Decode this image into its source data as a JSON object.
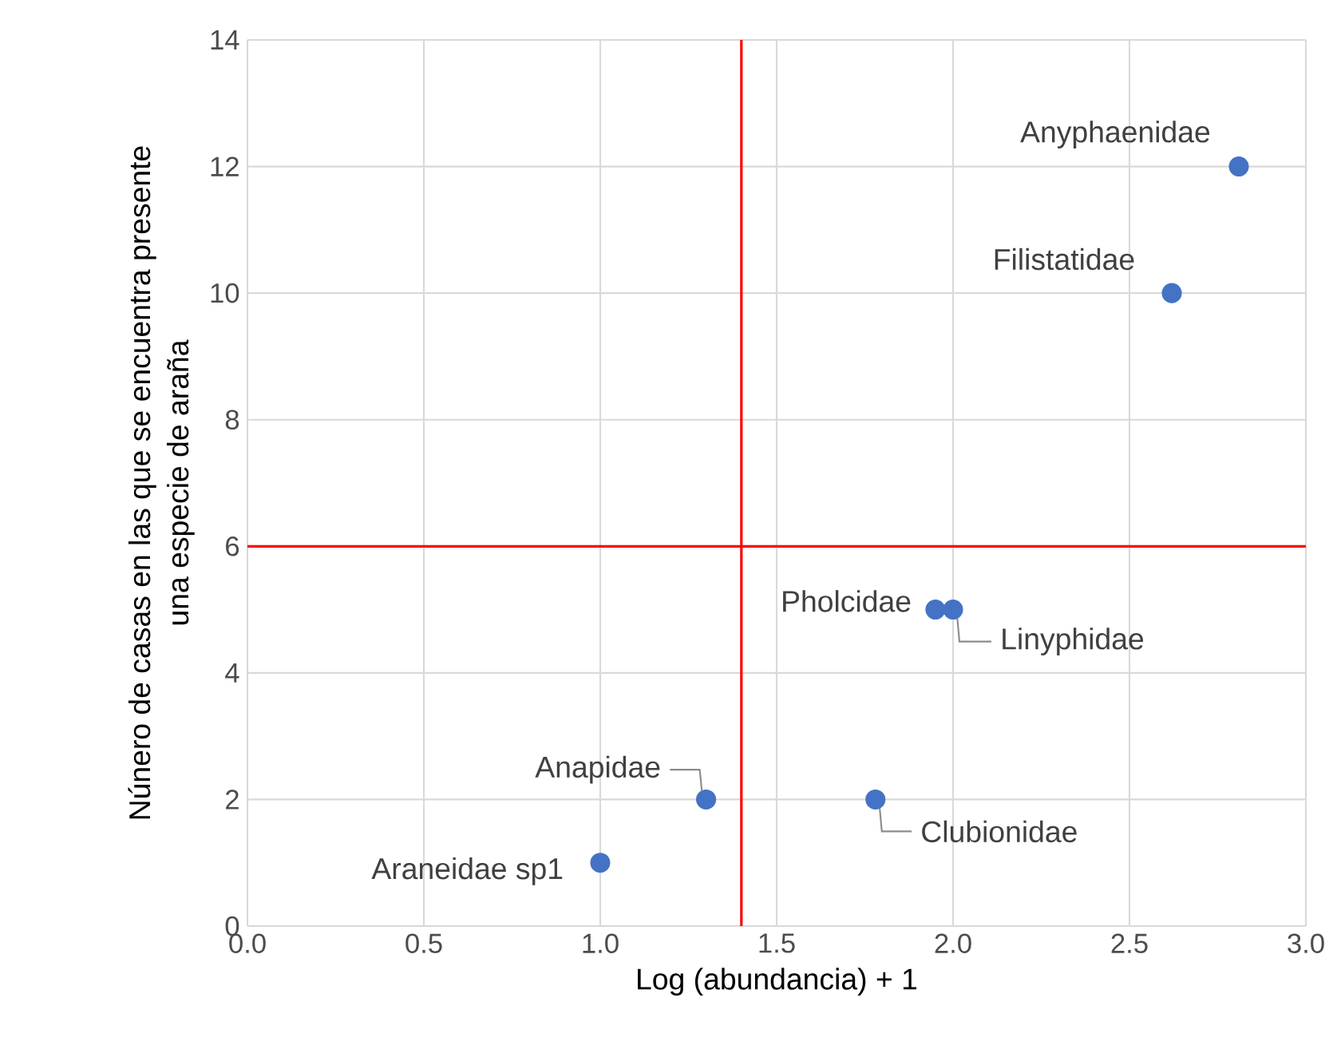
{
  "chart_data": {
    "type": "scatter",
    "xlabel": "Log (abundancia) + 1",
    "ylabel": "Núnero de casas en las que se encuentra presente una especie de araña",
    "x": [
      2.81,
      2.62,
      1.95,
      2.0,
      1.78,
      1.3,
      1.0
    ],
    "values": [
      12,
      10,
      5,
      5,
      2,
      2,
      1
    ],
    "color": "#4472c4",
    "xlim": [
      0,
      3
    ],
    "ylim": [
      0,
      14
    ],
    "xticks": [
      {
        "value": 0,
        "label": "0.0"
      },
      {
        "value": 0.5,
        "label": "0.5"
      },
      {
        "value": 1,
        "label": "1.0"
      },
      {
        "value": 1.5,
        "label": "1.5"
      },
      {
        "value": 2,
        "label": "2.0"
      },
      {
        "value": 2.5,
        "label": "2.5"
      },
      {
        "value": 3,
        "label": "3.0"
      }
    ],
    "yticks": [
      0,
      2,
      4,
      6,
      8,
      10,
      12,
      14
    ],
    "grid": true,
    "ref_lines": [
      {
        "axis": "x",
        "value": 1.4,
        "color": "#ff0000"
      },
      {
        "axis": "y",
        "value": 6,
        "color": "#ff0000"
      }
    ],
    "annotations": [
      {
        "text": "Anyphaenidae",
        "x": 2.81,
        "y": 12
      },
      {
        "text": "Filistatidae",
        "x": 2.62,
        "y": 10
      },
      {
        "text": "Pholcidae",
        "x": 1.95,
        "y": 5
      },
      {
        "text": "Linyphidae",
        "x": 2.0,
        "y": 5
      },
      {
        "text": "Clubionidae",
        "x": 1.78,
        "y": 2
      },
      {
        "text": "Anapidae",
        "x": 1.3,
        "y": 2
      },
      {
        "text": "Araneidae sp1",
        "x": 1.0,
        "y": 1
      }
    ]
  }
}
